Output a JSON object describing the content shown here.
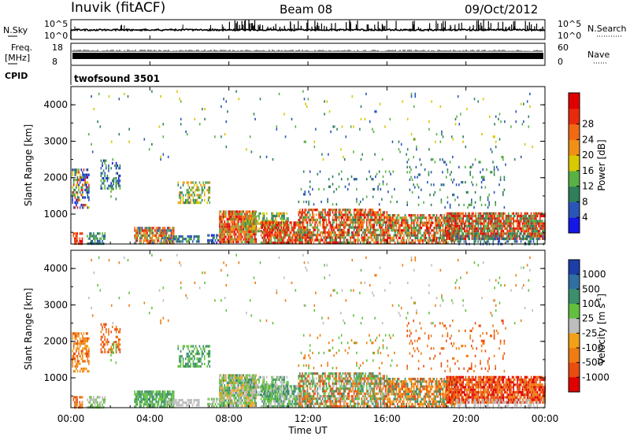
{
  "header": {
    "station": "Inuvik (fitACF)",
    "beam": "Beam 08",
    "date": "09/Oct/2012"
  },
  "panels": {
    "nsky": {
      "left_label": "N.Sky",
      "left_ticks": [
        "10^5",
        "10^0"
      ],
      "right_ticks": [
        "10^5",
        "10^0"
      ],
      "right_label": "N.Search"
    },
    "freq": {
      "left_label": "Freq.",
      "left_unit": "[MHz]",
      "left_ticks": [
        "18",
        "8"
      ],
      "right_ticks": [
        "60",
        "0"
      ],
      "right_label": "Nave"
    },
    "cpid": {
      "label": "CPID",
      "value": "twofsound 3501"
    }
  },
  "chart_data": [
    {
      "type": "heatmap",
      "name": "power",
      "ylabel": "Slant Range [km]",
      "yticks": [
        "1000",
        "2000",
        "3000",
        "4000"
      ],
      "ylim": [
        180,
        4500
      ],
      "xlim": [
        0,
        24
      ],
      "colorbar": {
        "label": "Power [dB]",
        "ticks": [
          "4",
          "8",
          "12",
          "16",
          "20",
          "24",
          "28"
        ],
        "colors": [
          "#1616e6",
          "#2a55b8",
          "#2e7f5a",
          "#59b044",
          "#d8c800",
          "#f09018",
          "#f06a14",
          "#e82a0c",
          "#e00000"
        ]
      }
    },
    {
      "type": "heatmap",
      "name": "velocity",
      "ylabel": "Slant Range [km]",
      "yticks": [
        "1000",
        "2000",
        "3000",
        "4000"
      ],
      "ylim": [
        180,
        4500
      ],
      "xlim": [
        0,
        24
      ],
      "xlabel": "Time UT",
      "xticks": [
        "00:00",
        "04:00",
        "08:00",
        "12:00",
        "16:00",
        "20:00",
        "00:00"
      ],
      "colorbar": {
        "label_main": "Velocity [m s",
        "label_sup": "-1",
        "label_end": "]",
        "ticks": [
          "1000",
          "500",
          "100",
          "25",
          "-25",
          "-100",
          "-500",
          "-1000"
        ],
        "colors": [
          "#1c3ea6",
          "#2f6fa2",
          "#3c8f6a",
          "#62c03e",
          "#bdbdbd",
          "#f2a018",
          "#ef7c12",
          "#e84c10",
          "#e00000"
        ]
      }
    }
  ]
}
